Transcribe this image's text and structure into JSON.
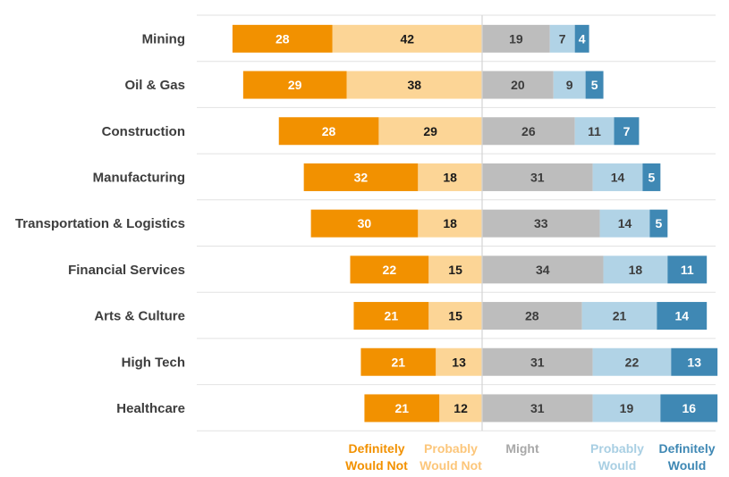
{
  "chart_data": {
    "type": "bar",
    "subtype": "diverging-stacked",
    "title": "",
    "xlabel": "",
    "ylabel": "",
    "categories": [
      "Mining",
      "Oil & Gas",
      "Construction",
      "Manufacturing",
      "Transportation & Logistics",
      "Financial Services",
      "Arts & Culture",
      "High Tech",
      "Healthcare"
    ],
    "series": [
      {
        "name": "Definitely Would Not",
        "legend": [
          "Definitely",
          "Would Not"
        ],
        "color": "#f29100",
        "label_color": "#ffffff",
        "side": "negative",
        "values": [
          28,
          29,
          28,
          32,
          30,
          22,
          21,
          21,
          21
        ]
      },
      {
        "name": "Probably Would Not",
        "legend": [
          "Probably",
          "Would Not"
        ],
        "color": "#fcd596",
        "label_color": "#1a1a1a",
        "side": "negative",
        "values": [
          42,
          38,
          29,
          18,
          18,
          15,
          15,
          13,
          12
        ]
      },
      {
        "name": "Might",
        "legend": [
          "Might"
        ],
        "color": "#bdbdbd",
        "label_color": "#3d3d3d",
        "side": "positive",
        "values": [
          19,
          20,
          26,
          31,
          33,
          34,
          28,
          31,
          31
        ]
      },
      {
        "name": "Probably Would",
        "legend": [
          "Probably",
          "Would"
        ],
        "color": "#b1d3e6",
        "label_color": "#3d3d3d",
        "side": "positive",
        "values": [
          7,
          9,
          11,
          14,
          14,
          18,
          21,
          22,
          19
        ]
      },
      {
        "name": "Definitely Would",
        "legend": [
          "Definitely",
          "Would"
        ],
        "color": "#3f88b4",
        "label_color": "#ffffff",
        "side": "positive",
        "values": [
          4,
          5,
          7,
          5,
          5,
          11,
          14,
          13,
          16
        ]
      }
    ],
    "xlim": [
      -70,
      66
    ],
    "legend_position": "bottom",
    "grid": false
  }
}
